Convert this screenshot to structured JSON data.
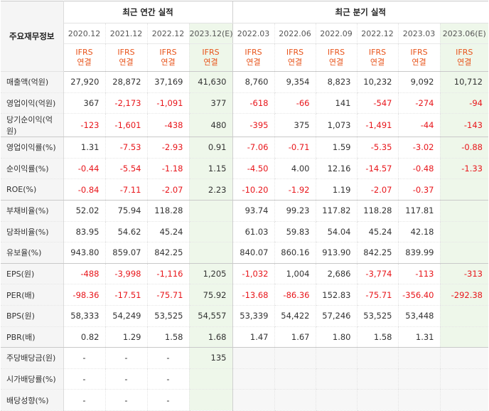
{
  "header": {
    "label": "주요재무정보",
    "annual_title": "최근 연간 실적",
    "quarter_title": "최근 분기 실적",
    "ifrs_top": "IFRS",
    "ifrs_bottom": "연결"
  },
  "periods": [
    "2020.12",
    "2021.12",
    "2022.12",
    "2023.12(E)",
    "2022.03",
    "2022.06",
    "2022.09",
    "2022.12",
    "2023.03",
    "2023.06(E)"
  ],
  "rows": [
    {
      "label": "매출액(억원)",
      "values": [
        "27,920",
        "28,872",
        "37,169",
        "41,630",
        "8,760",
        "9,354",
        "8,823",
        "10,232",
        "9,092",
        "10,712"
      ]
    },
    {
      "label": "영업이익(억원)",
      "values": [
        "367",
        "-2,173",
        "-1,091",
        "377",
        "-618",
        "-66",
        "141",
        "-547",
        "-274",
        "-94"
      ]
    },
    {
      "label": "당기순이익(억원)",
      "values": [
        "-123",
        "-1,601",
        "-438",
        "480",
        "-395",
        "375",
        "1,073",
        "-1,491",
        "-44",
        "-143"
      ]
    },
    {
      "label": "영업이익률(%)",
      "values": [
        "1.31",
        "-7.53",
        "-2.93",
        "0.91",
        "-7.06",
        "-0.71",
        "1.59",
        "-5.35",
        "-3.02",
        "-0.88"
      ]
    },
    {
      "label": "순이익률(%)",
      "values": [
        "-0.44",
        "-5.54",
        "-1.18",
        "1.15",
        "-4.50",
        "4.00",
        "12.16",
        "-14.57",
        "-0.48",
        "-1.33"
      ]
    },
    {
      "label": "ROE(%)",
      "values": [
        "-0.84",
        "-7.11",
        "-2.07",
        "2.23",
        "-10.20",
        "-1.92",
        "1.19",
        "-2.07",
        "-0.37",
        ""
      ]
    },
    {
      "label": "부채비율(%)",
      "values": [
        "52.02",
        "75.94",
        "118.28",
        "",
        "93.74",
        "99.23",
        "117.82",
        "118.28",
        "117.81",
        ""
      ]
    },
    {
      "label": "당좌비율(%)",
      "values": [
        "83.95",
        "54.62",
        "45.24",
        "",
        "61.03",
        "59.83",
        "54.04",
        "45.24",
        "42.18",
        ""
      ]
    },
    {
      "label": "유보율(%)",
      "values": [
        "943.80",
        "859.07",
        "842.25",
        "",
        "840.07",
        "860.16",
        "913.90",
        "842.25",
        "839.99",
        ""
      ]
    },
    {
      "label": "EPS(원)",
      "values": [
        "-488",
        "-3,998",
        "-1,116",
        "1,205",
        "-1,032",
        "1,004",
        "2,686",
        "-3,774",
        "-113",
        "-313"
      ]
    },
    {
      "label": "PER(배)",
      "values": [
        "-98.36",
        "-17.51",
        "-75.71",
        "75.92",
        "-13.68",
        "-86.36",
        "152.83",
        "-75.71",
        "-356.40",
        "-292.38"
      ]
    },
    {
      "label": "BPS(원)",
      "values": [
        "58,333",
        "54,249",
        "53,525",
        "54,557",
        "53,339",
        "54,422",
        "57,246",
        "53,525",
        "53,448",
        ""
      ]
    },
    {
      "label": "PBR(배)",
      "values": [
        "0.82",
        "1.29",
        "1.58",
        "1.68",
        "1.47",
        "1.67",
        "1.80",
        "1.58",
        "1.31",
        ""
      ]
    },
    {
      "label": "주당배당금(원)",
      "values": [
        "-",
        "-",
        "-",
        "135",
        "",
        "",
        "",
        "",
        "",
        ""
      ]
    },
    {
      "label": "시가배당률(%)",
      "values": [
        "-",
        "-",
        "-",
        "",
        "",
        "",
        "",
        "",
        "",
        ""
      ]
    },
    {
      "label": "배당성향(%)",
      "values": [
        "-",
        "-",
        "-",
        "",
        "",
        "",
        "",
        "",
        "",
        ""
      ]
    }
  ],
  "colors": {
    "negative": "#e8161b",
    "accent": "#e8541b",
    "estimate_bg": "#eef7ea"
  }
}
